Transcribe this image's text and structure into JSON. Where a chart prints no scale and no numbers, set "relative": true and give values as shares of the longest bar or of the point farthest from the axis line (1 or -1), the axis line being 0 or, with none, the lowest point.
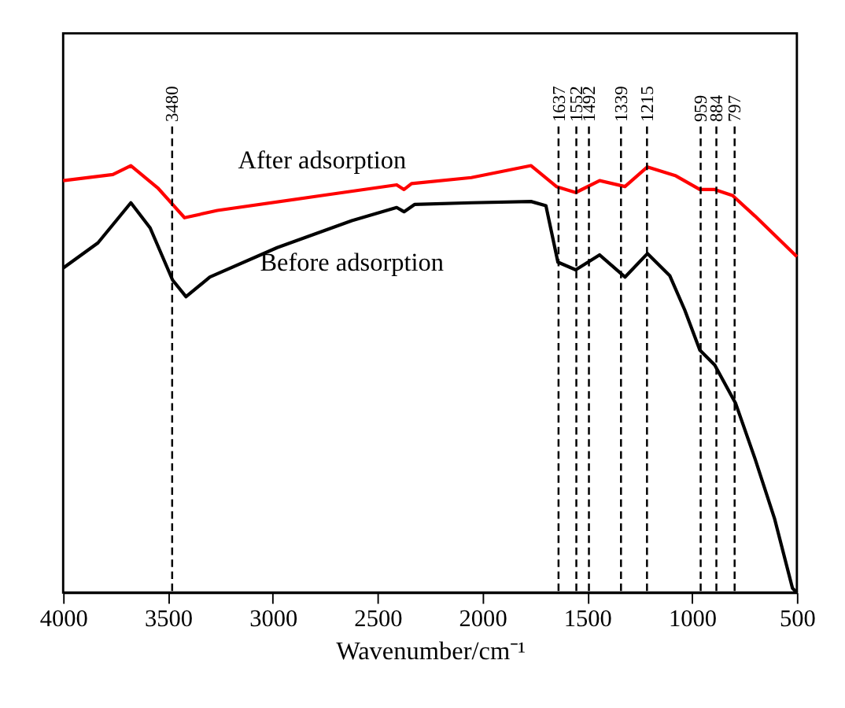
{
  "chart_data": {
    "type": "line",
    "relative": true,
    "xlabel": "Wavenumber/cm⁻¹",
    "xlim": [
      4000,
      500
    ],
    "xticks": [
      4000,
      3500,
      3000,
      2500,
      2000,
      1500,
      1000,
      500
    ],
    "grid": false,
    "marker": "none",
    "line_style": "solid",
    "series": [
      {
        "name": "After adsorption",
        "color": "#ff0000",
        "x": [
          4000,
          3763,
          3677,
          3549,
          3421,
          3264,
          2765,
          2409,
          2374,
          2338,
          2053,
          1768,
          1647,
          1555,
          1441,
          1320,
          1213,
          1077,
          963,
          892,
          807,
          700,
          500
        ],
        "values": [
          0.965,
          0.979,
          1.0,
          0.948,
          0.878,
          0.895,
          0.93,
          0.955,
          0.944,
          0.958,
          0.972,
          1.0,
          0.951,
          0.937,
          0.965,
          0.951,
          0.997,
          0.976,
          0.944,
          0.944,
          0.93,
          0.882,
          0.787
        ]
      },
      {
        "name": "Before adsorption",
        "color": "#000000",
        "x": [
          4000,
          3834,
          3677,
          3585,
          3478,
          3414,
          3300,
          2979,
          2623,
          2409,
          2374,
          2324,
          2053,
          1768,
          1697,
          1640,
          1555,
          1441,
          1320,
          1213,
          1106,
          1035,
          963,
          892,
          792,
          700,
          607,
          521,
          500
        ],
        "values": [
          0.76,
          0.819,
          0.913,
          0.854,
          0.732,
          0.693,
          0.739,
          0.808,
          0.871,
          0.902,
          0.892,
          0.909,
          0.913,
          0.916,
          0.906,
          0.774,
          0.756,
          0.791,
          0.739,
          0.794,
          0.742,
          0.662,
          0.568,
          0.533,
          0.443,
          0.314,
          0.174,
          0.01,
          0.0
        ]
      }
    ],
    "ref_lines": [
      {
        "axis": "x",
        "value": 3480,
        "label": "3480",
        "line_style": "dashed"
      },
      {
        "axis": "x",
        "value": 1637,
        "label": "1637",
        "line_style": "dashed"
      },
      {
        "axis": "x",
        "value": 1552,
        "label": "1552",
        "line_style": "dashed"
      },
      {
        "axis": "x",
        "value": 1492,
        "label": "1492",
        "line_style": "dashed"
      },
      {
        "axis": "x",
        "value": 1339,
        "label": "1339",
        "line_style": "dashed"
      },
      {
        "axis": "x",
        "value": 1215,
        "label": "1215",
        "line_style": "dashed"
      },
      {
        "axis": "x",
        "value": 959,
        "label": "959",
        "line_style": "dashed"
      },
      {
        "axis": "x",
        "value": 884,
        "label": "884",
        "line_style": "dashed"
      },
      {
        "axis": "x",
        "value": 797,
        "label": "797",
        "line_style": "dashed"
      }
    ]
  }
}
